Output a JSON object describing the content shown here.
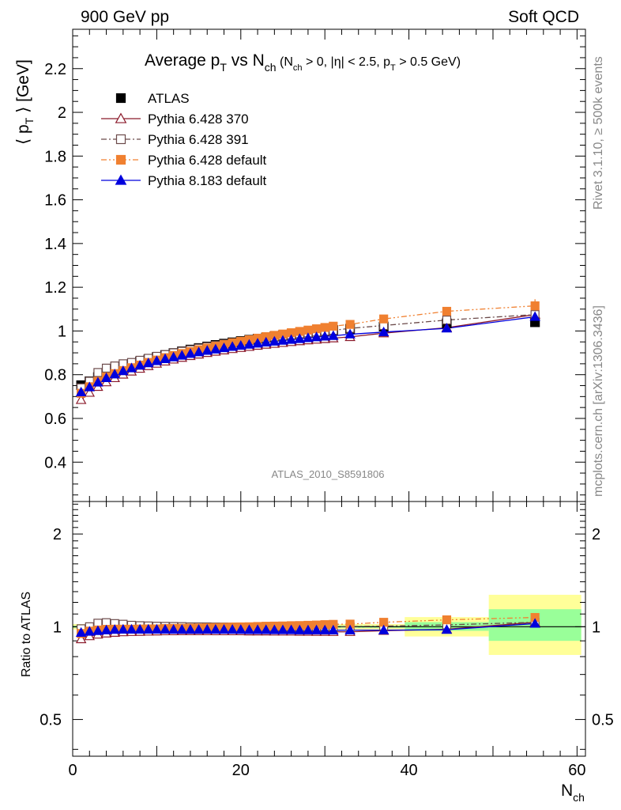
{
  "header": {
    "left": "900 GeV pp",
    "right": "Soft QCD"
  },
  "side": {
    "upper": "Rivet 3.1.10, ≥ 500k events",
    "lower": "mcplots.cern.ch [arXiv:1306.3436]"
  },
  "watermark": "ATLAS_2010_S8591806",
  "title": {
    "main": "Average p",
    "main_sub": "T",
    "vs": " vs N",
    "vs_sub": "ch",
    "cuts": " (N",
    "cuts_sub1": "ch",
    "cuts_mid1": " > 0, |η| < 2.5, p",
    "cuts_sub2": "T",
    "cuts_end": " > 0.5 GeV)"
  },
  "ylabel_top": {
    "pre": "⟨ p",
    "sub": "T",
    "post": " ⟩ [GeV]"
  },
  "ylabel_bottom": "Ratio to ATLAS",
  "xlabel": {
    "main": "N",
    "sub": "ch"
  },
  "colors": {
    "atlas": "#000000",
    "p370": "#8b1a2b",
    "p391": "#6b4a4a",
    "p6def": "#f08030",
    "p8def": "#0000dd",
    "band_outer": "#ffff99",
    "band_inner": "#99ff99"
  },
  "chart_data": [
    {
      "type": "scatter",
      "panel": "main",
      "xlim": [
        0,
        61
      ],
      "ylim": [
        0.22,
        2.38
      ],
      "yticks": [
        "0.4",
        "0.6",
        "0.8",
        "1",
        "1.2",
        "1.4",
        "1.6",
        "1.8",
        "2",
        "2.2"
      ],
      "ytick_values": [
        0.4,
        0.6,
        0.8,
        1.0,
        1.2,
        1.4,
        1.6,
        1.8,
        2.0,
        2.2
      ],
      "legend_position": "top-left",
      "x": [
        1,
        2,
        3,
        4,
        5,
        6,
        7,
        8,
        9,
        10,
        11,
        12,
        13,
        14,
        15,
        16,
        17,
        18,
        19,
        20,
        21,
        22,
        23,
        24,
        25,
        26,
        27,
        28,
        29,
        30,
        31,
        33,
        37,
        44.5,
        55
      ],
      "series": [
        {
          "name": "ATLAS",
          "marker": "filled-square",
          "values": [
            0.752,
            0.77,
            0.789,
            0.805,
            0.82,
            0.834,
            0.847,
            0.859,
            0.87,
            0.881,
            0.89,
            0.899,
            0.907,
            0.915,
            0.922,
            0.929,
            0.936,
            0.942,
            0.948,
            0.954,
            0.96,
            0.965,
            0.97,
            0.975,
            0.98,
            0.984,
            0.989,
            0.993,
            0.997,
            1.0,
            1.004,
            1.01,
            1.02,
            1.035,
            1.04
          ]
        },
        {
          "name": "Pythia 6.428 370",
          "marker": "open-triangle",
          "line": "solid",
          "values": [
            0.685,
            0.718,
            0.745,
            0.766,
            0.785,
            0.801,
            0.815,
            0.828,
            0.84,
            0.851,
            0.861,
            0.87,
            0.878,
            0.886,
            0.893,
            0.9,
            0.906,
            0.912,
            0.918,
            0.923,
            0.928,
            0.933,
            0.938,
            0.942,
            0.946,
            0.95,
            0.954,
            0.958,
            0.961,
            0.964,
            0.967,
            0.973,
            0.99,
            1.015,
            1.075
          ]
        },
        {
          "name": "Pythia 6.428 391",
          "marker": "open-square",
          "line": "dashdot",
          "values": [
            0.74,
            0.77,
            0.81,
            0.83,
            0.84,
            0.85,
            0.856,
            0.866,
            0.875,
            0.884,
            0.892,
            0.9,
            0.907,
            0.914,
            0.921,
            0.928,
            0.934,
            0.94,
            0.946,
            0.952,
            0.958,
            0.963,
            0.968,
            0.973,
            0.978,
            0.982,
            0.987,
            0.991,
            0.995,
            0.999,
            1.003,
            1.012,
            1.025,
            1.05,
            1.075
          ]
        },
        {
          "name": "Pythia 6.428 default",
          "marker": "filled-square",
          "line": "dashdotdot",
          "values": [
            0.715,
            0.745,
            0.77,
            0.79,
            0.805,
            0.819,
            0.832,
            0.844,
            0.856,
            0.867,
            0.878,
            0.888,
            0.897,
            0.906,
            0.914,
            0.922,
            0.93,
            0.938,
            0.946,
            0.953,
            0.96,
            0.967,
            0.974,
            0.98,
            0.986,
            0.992,
            0.998,
            1.004,
            1.01,
            1.016,
            1.022,
            1.03,
            1.055,
            1.09,
            1.115
          ],
          "last_error": 0.03
        },
        {
          "name": "Pythia 8.183 default",
          "marker": "filled-triangle",
          "line": "solid",
          "values": [
            0.72,
            0.743,
            0.765,
            0.785,
            0.802,
            0.817,
            0.83,
            0.842,
            0.853,
            0.863,
            0.872,
            0.88,
            0.888,
            0.896,
            0.903,
            0.91,
            0.916,
            0.922,
            0.928,
            0.933,
            0.938,
            0.943,
            0.948,
            0.952,
            0.956,
            0.96,
            0.964,
            0.968,
            0.972,
            0.975,
            0.978,
            0.985,
            0.995,
            1.012,
            1.065
          ]
        }
      ]
    },
    {
      "type": "scatter",
      "panel": "ratio",
      "xlim": [
        0,
        61
      ],
      "ylim": [
        0.38,
        2.55
      ],
      "ylog": true,
      "yticks": [
        "0.5",
        "1",
        "2"
      ],
      "ytick_values": [
        0.5,
        1,
        2
      ],
      "xticks": [
        "0",
        "20",
        "40",
        "60"
      ],
      "xtick_values": [
        0,
        20,
        40,
        60
      ],
      "bands": [
        {
          "x0": 39.5,
          "x1": 49.5,
          "outer": [
            0.93,
            1.075
          ],
          "inner": [
            0.97,
            1.035
          ]
        },
        {
          "x0": 49.5,
          "x1": 60.5,
          "outer": [
            0.81,
            1.27
          ],
          "inner": [
            0.9,
            1.14
          ]
        }
      ],
      "series": [
        {
          "name": "Pythia 6.428 370",
          "values": [
            0.912,
            0.933,
            0.944,
            0.952,
            0.957,
            0.961,
            0.963,
            0.964,
            0.966,
            0.967,
            0.968,
            0.968,
            0.969,
            0.969,
            0.969,
            0.969,
            0.968,
            0.968,
            0.968,
            0.968,
            0.967,
            0.967,
            0.967,
            0.966,
            0.966,
            0.966,
            0.965,
            0.965,
            0.964,
            0.964,
            0.963,
            0.963,
            0.971,
            0.981,
            1.034
          ]
        },
        {
          "name": "Pythia 6.428 391",
          "values": [
            0.985,
            1.0,
            1.027,
            1.031,
            1.024,
            1.019,
            1.011,
            1.008,
            1.006,
            1.004,
            1.003,
            1.002,
            1.001,
            0.999,
            0.999,
            0.999,
            0.998,
            0.998,
            0.998,
            0.998,
            0.998,
            0.998,
            0.998,
            0.998,
            0.998,
            0.998,
            0.998,
            0.998,
            0.998,
            0.999,
            0.999,
            1.002,
            1.005,
            1.014,
            1.034
          ]
        },
        {
          "name": "Pythia 6.428 default",
          "values": [
            0.951,
            0.968,
            0.976,
            0.981,
            0.982,
            0.982,
            0.982,
            0.983,
            0.984,
            0.984,
            0.987,
            0.988,
            0.989,
            0.99,
            0.991,
            0.993,
            0.994,
            0.996,
            0.998,
            0.999,
            1.0,
            1.002,
            1.004,
            1.005,
            1.006,
            1.008,
            1.009,
            1.011,
            1.013,
            1.016,
            1.018,
            1.02,
            1.034,
            1.053,
            1.072
          ]
        },
        {
          "name": "Pythia 8.183 default",
          "values": [
            0.957,
            0.965,
            0.97,
            0.975,
            0.978,
            0.98,
            0.98,
            0.98,
            0.98,
            0.98,
            0.98,
            0.979,
            0.979,
            0.979,
            0.979,
            0.98,
            0.979,
            0.979,
            0.979,
            0.978,
            0.977,
            0.977,
            0.977,
            0.976,
            0.976,
            0.976,
            0.975,
            0.975,
            0.975,
            0.975,
            0.974,
            0.975,
            0.975,
            0.978,
            1.024
          ]
        }
      ]
    }
  ]
}
